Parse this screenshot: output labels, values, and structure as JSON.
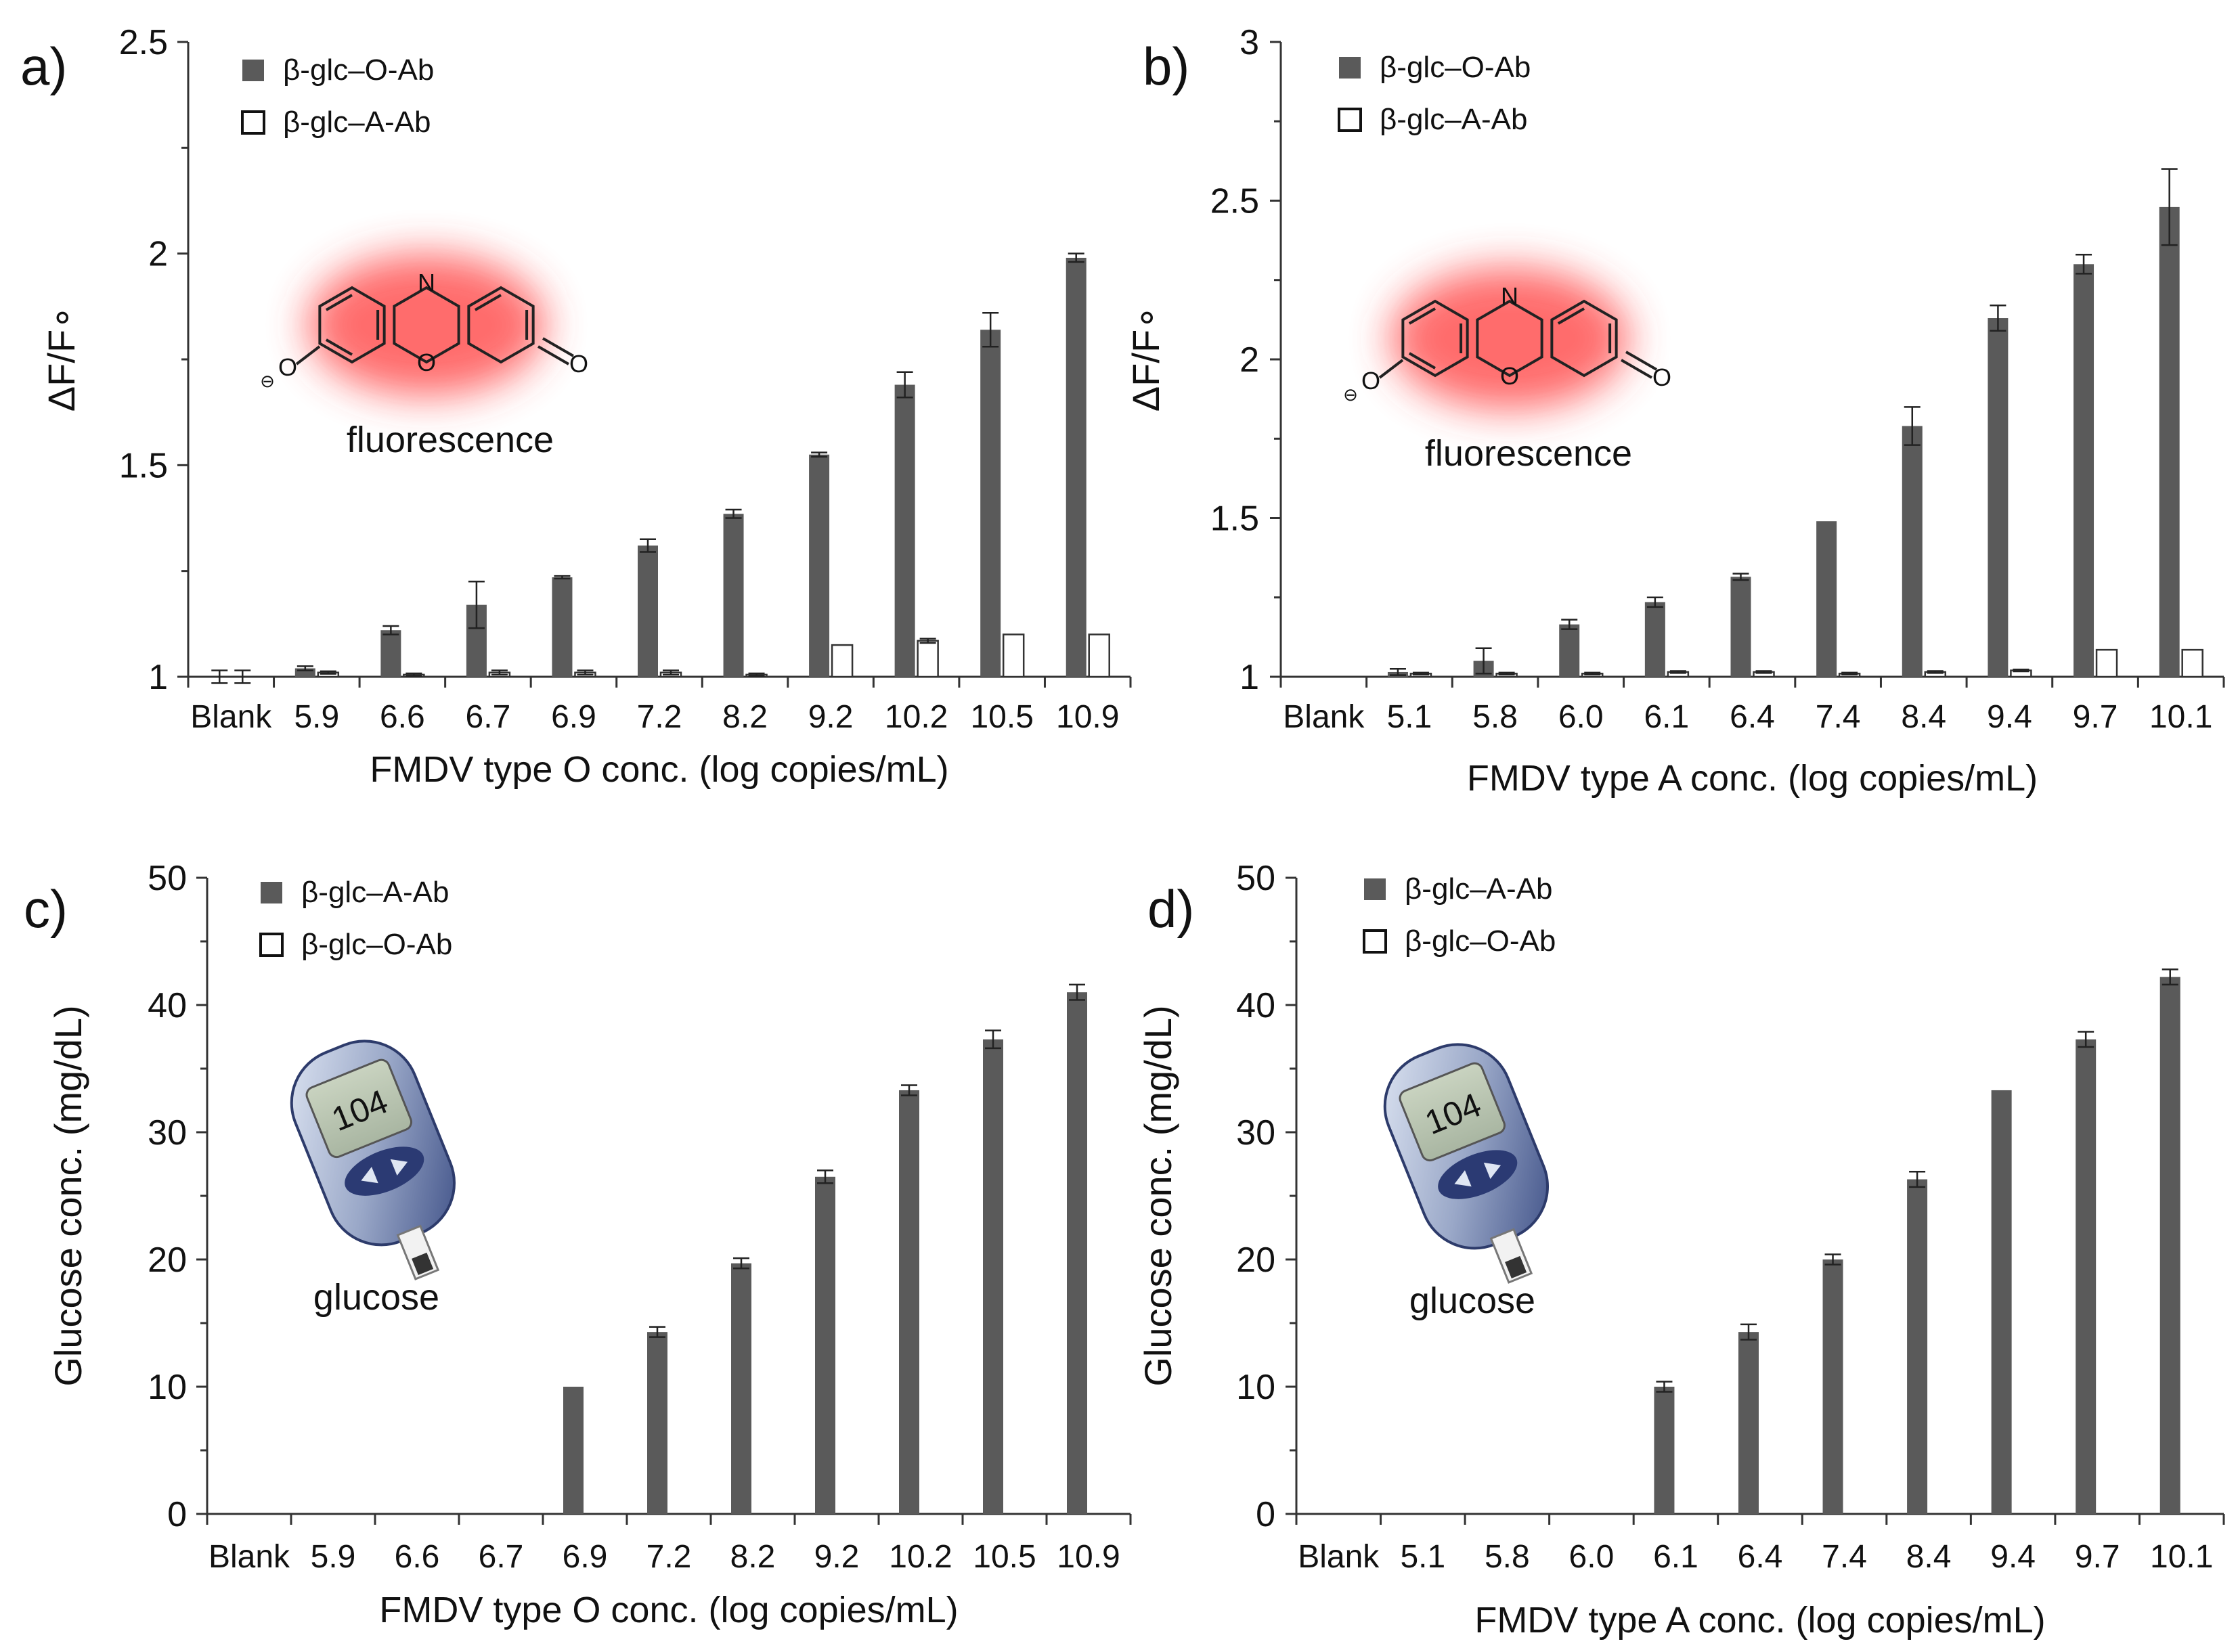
{
  "colors": {
    "filled_bar": "#5a5a5a",
    "open_bar": "#ffffff",
    "axis": "#333333",
    "glow": "#ff3b3b",
    "structure": "#222222"
  },
  "icons": {
    "panel_a": "resorufin-fluorescence-icon",
    "panel_b": "resorufin-fluorescence-icon",
    "panel_c": "glucose-meter-icon",
    "panel_d": "glucose-meter-icon"
  },
  "molecule": {
    "n_label": "N",
    "o_ring": "O",
    "o_carbonyl": "O",
    "o_minus": "O",
    "charge": "⊖"
  },
  "meter": {
    "reading": "104"
  },
  "chart_data": [
    {
      "panel": "a)",
      "type": "bar",
      "ylabel": "ΔF/F∘",
      "xlabel": "FMDV type O conc. (log copies/mL)",
      "ylim": [
        1,
        2.5
      ],
      "yticks": [
        1,
        1.5,
        2,
        2.5
      ],
      "tick_labels": [
        "1",
        "1.5",
        "2",
        "2.5"
      ],
      "categories": [
        "Blank",
        "5.9",
        "6.6",
        "6.7",
        "6.9",
        "7.2",
        "8.2",
        "9.2",
        "10.2",
        "10.5",
        "10.9"
      ],
      "series": [
        {
          "name": "β-glc–O-Ab",
          "fill": "filled",
          "values": [
            1.0,
            1.02,
            1.11,
            1.17,
            1.235,
            1.31,
            1.385,
            1.525,
            1.69,
            1.82,
            1.99
          ],
          "errors": [
            0.015,
            0.005,
            0.01,
            0.055,
            0.003,
            0.015,
            0.01,
            0.005,
            0.03,
            0.04,
            0.01
          ]
        },
        {
          "name": "β-glc–A-Ab",
          "fill": "open",
          "values": [
            1.0,
            1.01,
            1.005,
            1.01,
            1.01,
            1.01,
            1.005,
            1.075,
            1.085,
            1.1,
            1.1
          ],
          "errors": [
            0.015,
            0.003,
            0.003,
            0.005,
            0.005,
            0.005,
            0.003,
            0,
            0.005,
            0,
            0
          ]
        }
      ],
      "annotation": "fluorescence"
    },
    {
      "panel": "b)",
      "type": "bar",
      "ylabel": "ΔF/F∘",
      "xlabel": "FMDV type A conc. (log copies/mL)",
      "ylim": [
        1,
        3
      ],
      "yticks": [
        1,
        1.5,
        2,
        2.5,
        3
      ],
      "tick_labels": [
        "1",
        "1.5",
        "2",
        "2.5",
        "3"
      ],
      "categories": [
        "Blank",
        "5.1",
        "5.8",
        "6.0",
        "6.1",
        "6.4",
        "7.4",
        "8.4",
        "9.4",
        "9.7",
        "10.1"
      ],
      "series": [
        {
          "name": "β-glc–O-Ab",
          "fill": "filled",
          "values": [
            1.0,
            1.015,
            1.05,
            1.165,
            1.235,
            1.315,
            1.49,
            1.79,
            2.13,
            2.3,
            2.48
          ],
          "errors": [
            0,
            0.01,
            0.04,
            0.015,
            0.015,
            0.01,
            0,
            0.06,
            0.04,
            0.03,
            0.12
          ]
        },
        {
          "name": "β-glc–A-Ab",
          "fill": "open",
          "values": [
            1.0,
            1.01,
            1.01,
            1.01,
            1.015,
            1.015,
            1.01,
            1.015,
            1.02,
            1.085,
            1.085
          ],
          "errors": [
            0,
            0.003,
            0.003,
            0.003,
            0.003,
            0.003,
            0.003,
            0.003,
            0.003,
            0,
            0
          ]
        }
      ],
      "annotation": "fluorescence"
    },
    {
      "panel": "c)",
      "type": "bar",
      "ylabel": "Glucose conc. (mg/dL)",
      "xlabel": "FMDV type O conc. (log copies/mL)",
      "ylim": [
        0,
        50
      ],
      "yticks": [
        0,
        10,
        20,
        30,
        40,
        50
      ],
      "tick_labels": [
        "0",
        "10",
        "20",
        "30",
        "40",
        "50"
      ],
      "categories": [
        "Blank",
        "5.9",
        "6.6",
        "6.7",
        "6.9",
        "7.2",
        "8.2",
        "9.2",
        "10.2",
        "10.5",
        "10.9"
      ],
      "series": [
        {
          "name": "β-glc–A-Ab",
          "fill": "filled",
          "values": [
            0,
            0,
            0,
            0,
            10,
            14.3,
            19.7,
            26.5,
            33.3,
            37.3,
            41.0
          ],
          "errors": [
            0,
            0,
            0,
            0,
            0,
            0.4,
            0.4,
            0.5,
            0.4,
            0.7,
            0.6
          ]
        },
        {
          "name": "β-glc–O-Ab",
          "fill": "open",
          "values": [
            0,
            0,
            0,
            0,
            0,
            0,
            0,
            0,
            0,
            0,
            0
          ],
          "errors": [
            0,
            0,
            0,
            0,
            0,
            0,
            0,
            0,
            0,
            0,
            0
          ]
        }
      ],
      "annotation": "glucose"
    },
    {
      "panel": "d)",
      "type": "bar",
      "ylabel": "Glucose conc. (mg/dL)",
      "xlabel": "FMDV type A conc. (log copies/mL)",
      "ylim": [
        0,
        50
      ],
      "yticks": [
        0,
        10,
        20,
        30,
        40,
        50
      ],
      "tick_labels": [
        "0",
        "10",
        "20",
        "30",
        "40",
        "50"
      ],
      "categories": [
        "Blank",
        "5.1",
        "5.8",
        "6.0",
        "6.1",
        "6.4",
        "7.4",
        "8.4",
        "9.4",
        "9.7",
        "10.1"
      ],
      "series": [
        {
          "name": "β-glc–A-Ab",
          "fill": "filled",
          "values": [
            0,
            0,
            0,
            0,
            10,
            14.3,
            20.0,
            26.3,
            33.3,
            37.3,
            42.2
          ],
          "errors": [
            0,
            0,
            0,
            0,
            0.4,
            0.6,
            0.4,
            0.6,
            0,
            0.6,
            0.6
          ]
        },
        {
          "name": "β-glc–O-Ab",
          "fill": "open",
          "values": [
            0,
            0,
            0,
            0,
            0,
            0,
            0,
            0,
            0,
            0,
            0
          ],
          "errors": [
            0,
            0,
            0,
            0,
            0,
            0,
            0,
            0,
            0,
            0,
            0
          ]
        }
      ],
      "annotation": "glucose"
    }
  ]
}
